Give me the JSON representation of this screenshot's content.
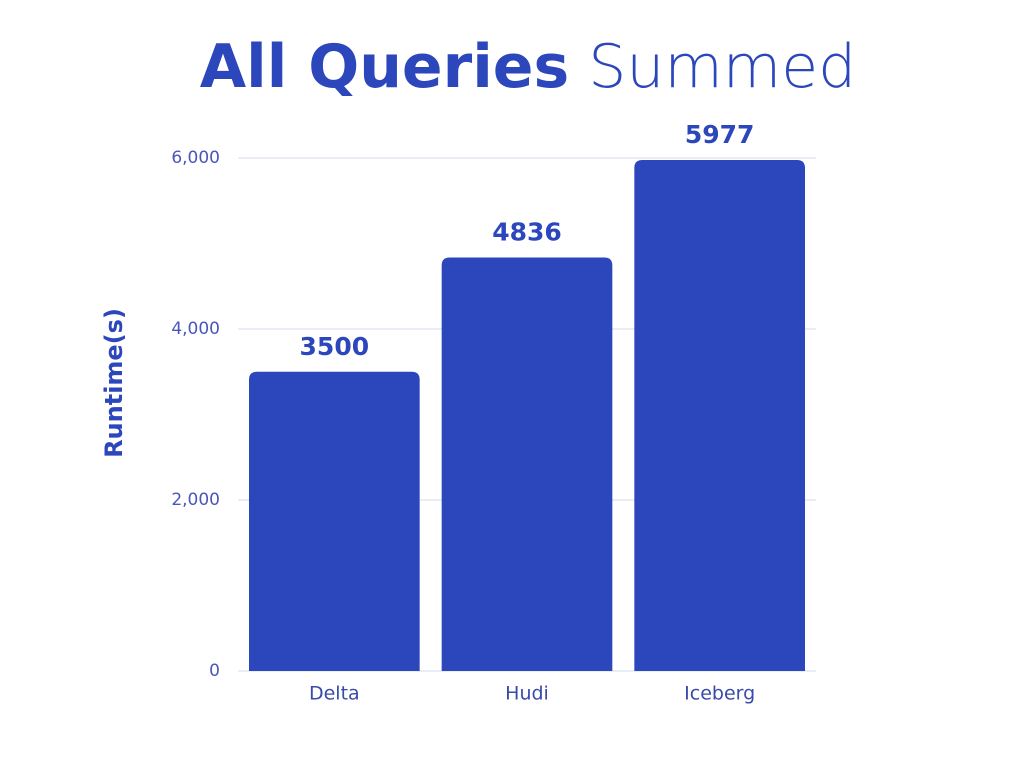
{
  "chart_data": {
    "type": "bar",
    "title": [
      "All Queries",
      "Summed"
    ],
    "y_label": "Runtime(s)",
    "categories": [
      "Delta",
      "Hudi",
      "Iceberg"
    ],
    "values": [
      3500,
      4836,
      5977
    ],
    "color": "#2c46bb",
    "ylim": [
      0,
      6000
    ],
    "yticks": [
      0,
      {
        "value": 2000,
        "label": "2,000"
      },
      {
        "value": 4000,
        "label": "4,000"
      },
      {
        "value": 6000,
        "label": "6,000"
      }
    ],
    "grid": true
  }
}
